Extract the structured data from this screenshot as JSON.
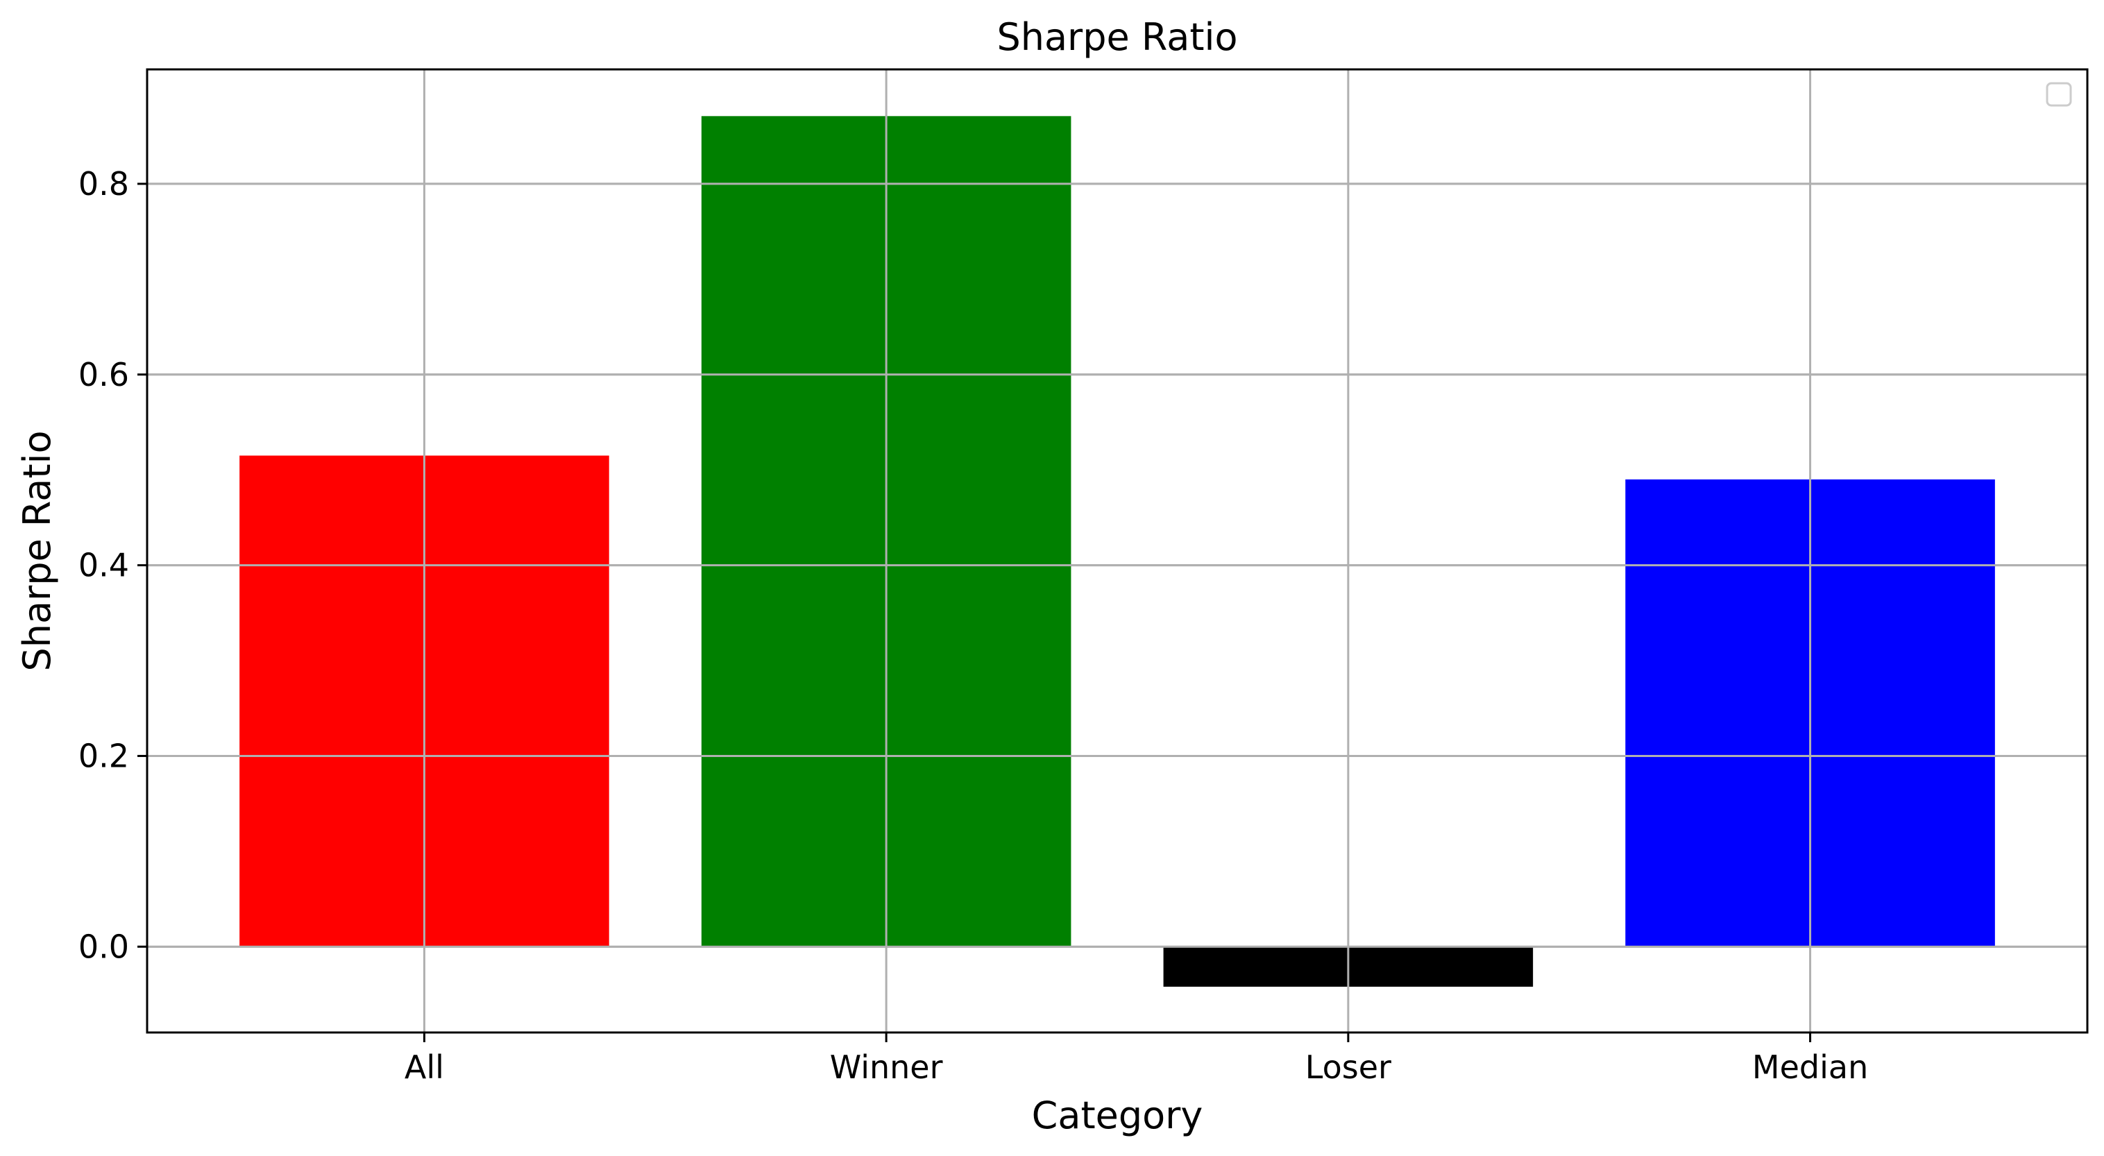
{
  "chart_data": {
    "type": "bar",
    "title": "Sharpe Ratio",
    "xlabel": "Category",
    "ylabel": "Sharpe Ratio",
    "categories": [
      "All",
      "Winner",
      "Loser",
      "Median"
    ],
    "values": [
      0.515,
      0.871,
      -0.042,
      0.49
    ],
    "colors": [
      "#ff0000",
      "#008000",
      "#000000",
      "#0000ff"
    ],
    "ylim": [
      -0.09,
      0.92
    ],
    "yticks": [
      0.0,
      0.2,
      0.4,
      0.6,
      0.8
    ],
    "ytick_labels": [
      "0.0",
      "0.2",
      "0.4",
      "0.6",
      "0.8"
    ],
    "grid": true,
    "legend": {
      "placement": "top-right",
      "entries": []
    }
  }
}
